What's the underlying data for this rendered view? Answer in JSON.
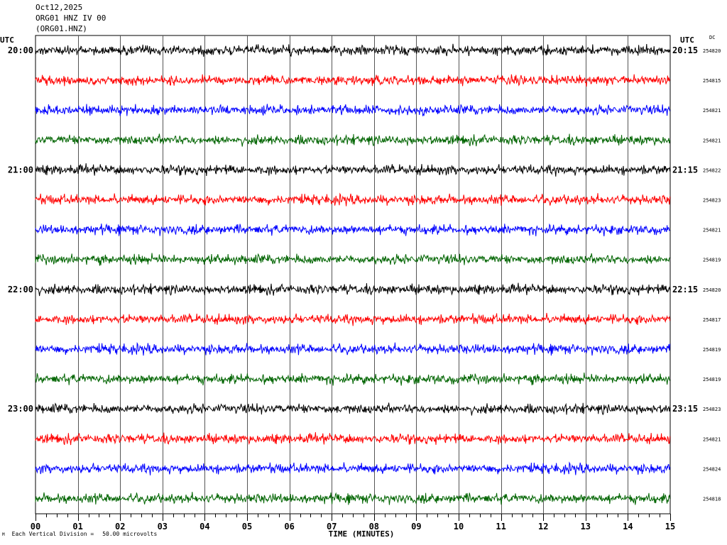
{
  "header": {
    "date": "Oct12,2025",
    "station": "ORG01 HNZ IV 00",
    "channel": "(ORG01.HNZ)"
  },
  "utc_left": "UTC",
  "utc_right": "UTC",
  "dc_label": "DC",
  "footer": {
    "mark": "M",
    "division_label": "Each Vertical Division =",
    "division_value": "50.00 microvolts"
  },
  "chart_data": {
    "type": "line",
    "title": "",
    "xlabel": "TIME (MINUTES)",
    "xlim": [
      0,
      15
    ],
    "x_ticks": [
      "00",
      "01",
      "02",
      "03",
      "04",
      "05",
      "06",
      "07",
      "08",
      "09",
      "10",
      "11",
      "12",
      "13",
      "14",
      "15"
    ],
    "trace_colors": [
      "#000000",
      "#ff0000",
      "#0000ff",
      "#006400"
    ],
    "left_hour_labels": [
      "20:00",
      "21:00",
      "22:00",
      "23:00"
    ],
    "right_hour_labels": [
      "20:15",
      "21:15",
      "22:15",
      "23:15"
    ],
    "dc_offsets": [
      "254820",
      "254815",
      "254821",
      "254821",
      "254822",
      "254823",
      "254821",
      "254819",
      "254820",
      "254817",
      "254819",
      "254819",
      "254823",
      "254821",
      "254824",
      "254818"
    ],
    "grid": true
  }
}
